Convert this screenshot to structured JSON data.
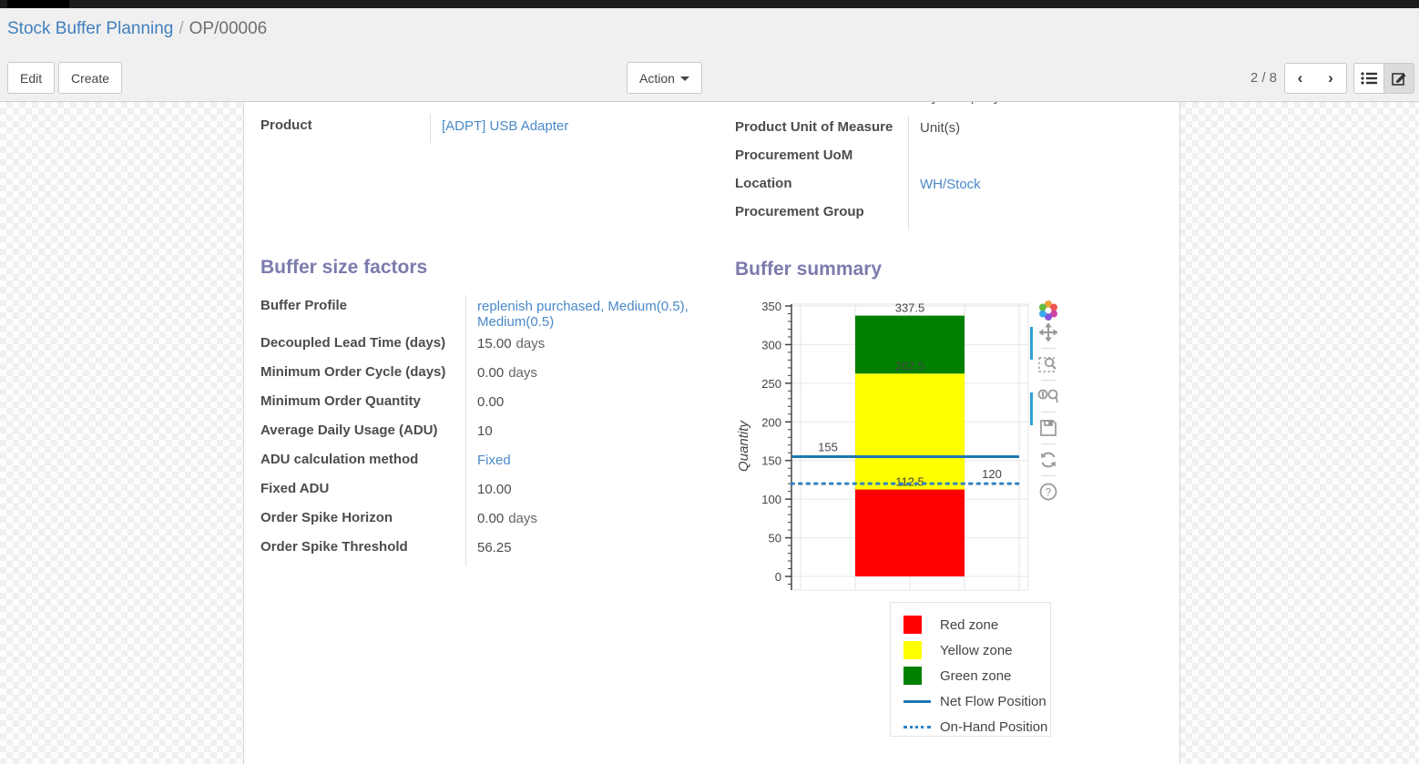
{
  "breadcrumb": {
    "parent": "Stock Buffer Planning",
    "separator": "/",
    "current": "OP/00006"
  },
  "toolbar": {
    "edit_label": "Edit",
    "create_label": "Create",
    "action_label": "Action",
    "pager": "2 / 8",
    "pager_prev": "‹",
    "pager_next": "›",
    "view_switcher": [
      "list-view",
      "form-view"
    ],
    "active_view": "form-view"
  },
  "form": {
    "left_fields": [
      {
        "label": "Product",
        "value": "[ADPT] USB Adapter",
        "link": true
      }
    ],
    "right_fields": [
      {
        "label": "Product Unit of Measure",
        "value": "Unit(s)",
        "link": false
      },
      {
        "label": "Procurement UoM",
        "value": "",
        "link": false
      },
      {
        "label": "Location",
        "value": "WH/Stock",
        "link": true
      },
      {
        "label": "Procurement Group",
        "value": "",
        "link": false
      }
    ],
    "clipped_row_value": "My Company",
    "factors": {
      "title": "Buffer size factors",
      "rows": [
        {
          "label": "Buffer Profile",
          "value": "replenish purchased, Medium(0.5), Medium(0.5)",
          "link": true,
          "suffix": ""
        },
        {
          "label": "Decoupled Lead Time (days)",
          "value": "15.00",
          "link": false,
          "suffix": "days"
        },
        {
          "label": "Minimum Order Cycle (days)",
          "value": "0.00",
          "link": false,
          "suffix": "days"
        },
        {
          "label": "Minimum Order Quantity",
          "value": "0.00",
          "link": false,
          "suffix": ""
        },
        {
          "label": "Average Daily Usage (ADU)",
          "value": "10",
          "link": false,
          "suffix": ""
        },
        {
          "label": "ADU calculation method",
          "value": "Fixed",
          "link": true,
          "suffix": ""
        },
        {
          "label": "Fixed ADU",
          "value": "10.00",
          "link": false,
          "suffix": ""
        },
        {
          "label": "Order Spike Horizon",
          "value": "0.00",
          "link": false,
          "suffix": "days"
        },
        {
          "label": "Order Spike Threshold",
          "value": "56.25",
          "link": false,
          "suffix": ""
        }
      ]
    },
    "summary_title": "Buffer summary"
  },
  "chart_data": {
    "type": "bar",
    "title": "Buffer summary",
    "xlabel": "",
    "ylabel": "Quantity",
    "ylim": [
      0,
      350
    ],
    "ytick_step": 50,
    "yminor_step": 10,
    "grid": true,
    "zones": [
      {
        "name": "Red zone",
        "color": "#ff0000",
        "from": 0,
        "to": 112.5,
        "top_label": "112.5"
      },
      {
        "name": "Yellow zone",
        "color": "#ffff00",
        "from": 112.5,
        "to": 262.5,
        "top_label": "262.5"
      },
      {
        "name": "Green zone",
        "color": "#008000",
        "from": 262.5,
        "to": 337.5,
        "top_label": "337.5"
      }
    ],
    "lines": [
      {
        "name": "Net Flow Position",
        "value": 155,
        "style": "solid",
        "color": "#1f77b4",
        "label": "155",
        "label_anchor": "left"
      },
      {
        "name": "On-Hand Position",
        "value": 120,
        "style": "dotted",
        "color": "#2d81c5",
        "label": "120",
        "label_anchor": "right"
      }
    ],
    "legend": [
      {
        "label": "Red zone",
        "swatch": "square",
        "color": "#ff0000"
      },
      {
        "label": "Yellow zone",
        "swatch": "square",
        "color": "#ffff00"
      },
      {
        "label": "Green zone",
        "swatch": "square",
        "color": "#008000"
      },
      {
        "label": "Net Flow Position",
        "swatch": "line",
        "color": "#1f77b4"
      },
      {
        "label": "On-Hand Position",
        "swatch": "dotted",
        "color": "#2d81c5"
      }
    ],
    "legend_position": "below-right",
    "modebar_icons": [
      "plotly-logo",
      "pan",
      "zoom-box",
      "compare-hover",
      "save",
      "reset-axes",
      "help"
    ]
  },
  "colors": {
    "accent_purple": "#7c7bad",
    "link_blue": "#4a89c8",
    "breadcrumb_blue": "#417fbd",
    "chart_axis_text": "#444444"
  }
}
